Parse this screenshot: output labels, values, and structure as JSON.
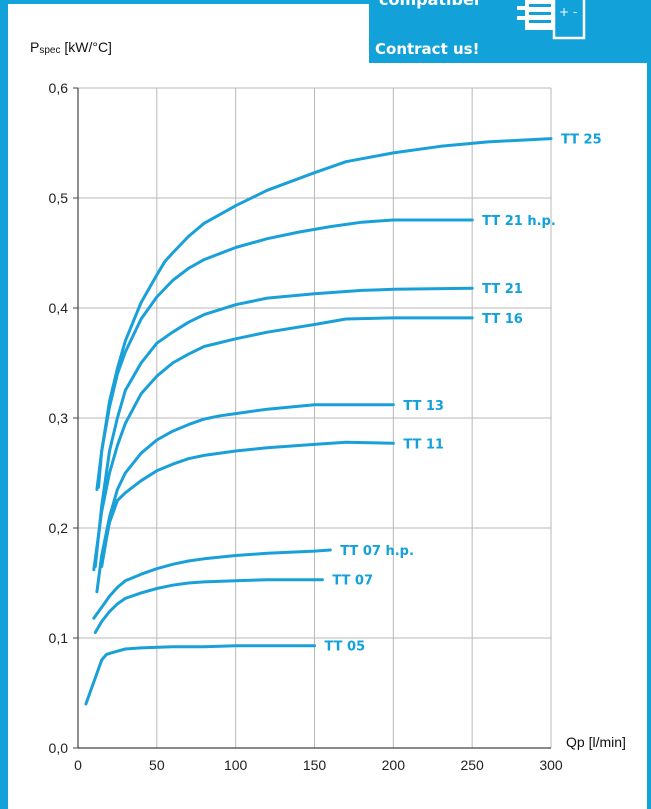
{
  "banner": {
    "line1": "compatibel",
    "line2": "Contract us!",
    "icon": "battery-plus-minus-icon"
  },
  "colors": {
    "frame": "#12a1d8",
    "line": "#1aa0d8",
    "label": "#12a1d8",
    "grid": "#b8b8b8"
  },
  "chart_data": {
    "type": "line",
    "title": "",
    "ylabel_main": "P",
    "ylabel_sub": "spec",
    "ylabel_unit": " [kW/°C]",
    "xlabel": "Qp [l/min]",
    "xlim": [
      0,
      300
    ],
    "ylim": [
      0,
      0.6
    ],
    "xticks": [
      "0",
      "50",
      "100",
      "150",
      "200",
      "250",
      "300"
    ],
    "yticks": [
      "0,0",
      "0,1",
      "0,2",
      "0,3",
      "0,4",
      "0,5",
      "0,6"
    ],
    "grid": true,
    "series": [
      {
        "name": "TT 25",
        "x": [
          12,
          15,
          20,
          25,
          30,
          40,
          50,
          55,
          60,
          70,
          80,
          100,
          120,
          150,
          170,
          200,
          230,
          260,
          300
        ],
        "y": [
          0.235,
          0.27,
          0.315,
          0.345,
          0.37,
          0.405,
          0.43,
          0.442,
          0.45,
          0.465,
          0.477,
          0.493,
          0.507,
          0.523,
          0.533,
          0.541,
          0.547,
          0.551,
          0.554
        ]
      },
      {
        "name": "TT 21 h.p.",
        "x": [
          13,
          15,
          20,
          25,
          30,
          40,
          50,
          60,
          70,
          80,
          100,
          120,
          140,
          160,
          180,
          200,
          250
        ],
        "y": [
          0.237,
          0.27,
          0.31,
          0.34,
          0.36,
          0.39,
          0.41,
          0.425,
          0.436,
          0.444,
          0.455,
          0.463,
          0.469,
          0.474,
          0.478,
          0.48,
          0.48
        ]
      },
      {
        "name": "TT 21",
        "x": [
          11,
          15,
          20,
          25,
          30,
          40,
          50,
          60,
          70,
          80,
          100,
          120,
          150,
          180,
          200,
          250
        ],
        "y": [
          0.165,
          0.22,
          0.27,
          0.3,
          0.325,
          0.35,
          0.368,
          0.378,
          0.387,
          0.394,
          0.403,
          0.409,
          0.413,
          0.416,
          0.417,
          0.418
        ]
      },
      {
        "name": "TT 16",
        "x": [
          10,
          15,
          20,
          25,
          30,
          40,
          50,
          60,
          70,
          80,
          100,
          120,
          150,
          170,
          200,
          250
        ],
        "y": [
          0.162,
          0.215,
          0.25,
          0.275,
          0.295,
          0.322,
          0.338,
          0.35,
          0.358,
          0.365,
          0.372,
          0.378,
          0.385,
          0.39,
          0.391,
          0.391
        ]
      },
      {
        "name": "TT 13",
        "x": [
          12,
          15,
          20,
          25,
          30,
          40,
          50,
          60,
          70,
          80,
          90,
          100,
          120,
          150,
          180,
          200
        ],
        "y": [
          0.142,
          0.175,
          0.21,
          0.235,
          0.25,
          0.268,
          0.28,
          0.288,
          0.294,
          0.299,
          0.302,
          0.304,
          0.308,
          0.312,
          0.312,
          0.312
        ]
      },
      {
        "name": "TT 11",
        "x": [
          15,
          18,
          20,
          25,
          30,
          40,
          50,
          60,
          70,
          80,
          100,
          120,
          150,
          170,
          200
        ],
        "y": [
          0.165,
          0.19,
          0.205,
          0.225,
          0.232,
          0.243,
          0.252,
          0.258,
          0.263,
          0.266,
          0.27,
          0.273,
          0.276,
          0.278,
          0.277
        ]
      },
      {
        "name": "TT 07 h.p.",
        "x": [
          10,
          15,
          20,
          25,
          30,
          40,
          50,
          60,
          70,
          80,
          100,
          120,
          150,
          160
        ],
        "y": [
          0.118,
          0.128,
          0.138,
          0.146,
          0.152,
          0.158,
          0.163,
          0.167,
          0.17,
          0.172,
          0.175,
          0.177,
          0.179,
          0.18
        ]
      },
      {
        "name": "TT 07",
        "x": [
          11,
          15,
          20,
          25,
          30,
          40,
          50,
          60,
          70,
          80,
          100,
          120,
          150,
          155
        ],
        "y": [
          0.105,
          0.115,
          0.124,
          0.131,
          0.136,
          0.141,
          0.145,
          0.148,
          0.15,
          0.151,
          0.152,
          0.153,
          0.153,
          0.153
        ]
      },
      {
        "name": "TT 05",
        "x": [
          5,
          10,
          15,
          18,
          20,
          25,
          30,
          40,
          60,
          80,
          100,
          120,
          150
        ],
        "y": [
          0.04,
          0.06,
          0.08,
          0.085,
          0.086,
          0.088,
          0.09,
          0.091,
          0.092,
          0.092,
          0.093,
          0.093,
          0.093
        ]
      }
    ]
  }
}
